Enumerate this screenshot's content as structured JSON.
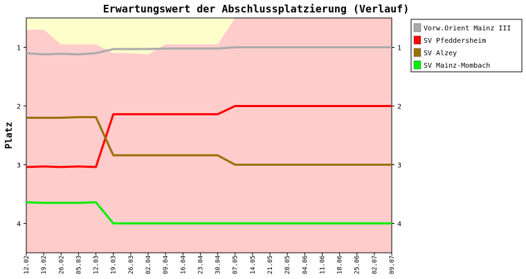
{
  "chart_data": {
    "type": "line",
    "title": "Erwartungswert der Abschlussplatzierung (Verlauf)",
    "xlabel": "",
    "ylabel": "Platz",
    "ylim": [
      0.5,
      4.5
    ],
    "y_inverted": true,
    "yticks": [
      1,
      2,
      3,
      4
    ],
    "grid": false,
    "legend_position": "top-right",
    "colors": {
      "background_upper": "#ffffcc",
      "background_lower": "#ffcccc",
      "border": "#000000"
    },
    "x": [
      "12.02",
      "19.02",
      "26.02",
      "05.03",
      "12.03",
      "19.03",
      "26.03",
      "02.04",
      "09.04",
      "16.04",
      "23.04",
      "30.04",
      "07.05",
      "14.05",
      "21.05",
      "28.05",
      "04.06",
      "11.06",
      "18.06",
      "25.06",
      "02.07",
      "09.07"
    ],
    "band_upper_edge": [
      0.7,
      0.7,
      0.95,
      0.95,
      0.95,
      1.1,
      1.1,
      1.12,
      0.95,
      0.95,
      0.95,
      0.95,
      0.5,
      0.5,
      0.5,
      0.5,
      0.5,
      0.5,
      0.5,
      0.5,
      0.5,
      0.5
    ],
    "series": [
      {
        "name": "Vorw.Orient Mainz   III",
        "color": "#aaaaaa",
        "values": [
          1.1,
          1.12,
          1.11,
          1.12,
          1.1,
          1.03,
          1.03,
          1.03,
          1.02,
          1.02,
          1.02,
          1.02,
          1.0,
          1.0,
          1.0,
          1.0,
          1.0,
          1.0,
          1.0,
          1.0,
          1.0,
          1.0
        ]
      },
      {
        "name": "SV Pfeddersheim",
        "color": "#ff0000",
        "values": [
          3.04,
          3.03,
          3.04,
          3.03,
          3.04,
          2.14,
          2.14,
          2.14,
          2.14,
          2.14,
          2.14,
          2.14,
          2.0,
          2.0,
          2.0,
          2.0,
          2.0,
          2.0,
          2.0,
          2.0,
          2.0,
          2.0
        ]
      },
      {
        "name": "SV Alzey",
        "color": "#9a7000",
        "values": [
          2.2,
          2.2,
          2.2,
          2.19,
          2.19,
          2.84,
          2.84,
          2.84,
          2.84,
          2.84,
          2.84,
          2.84,
          3.0,
          3.0,
          3.0,
          3.0,
          3.0,
          3.0,
          3.0,
          3.0,
          3.0,
          3.0
        ]
      },
      {
        "name": "SV Mainz-Mombach",
        "color": "#00ee00",
        "values": [
          3.64,
          3.65,
          3.65,
          3.65,
          3.64,
          4.0,
          4.0,
          4.0,
          4.0,
          4.0,
          4.0,
          4.0,
          4.0,
          4.0,
          4.0,
          4.0,
          4.0,
          4.0,
          4.0,
          4.0,
          4.0,
          4.0
        ]
      }
    ]
  }
}
